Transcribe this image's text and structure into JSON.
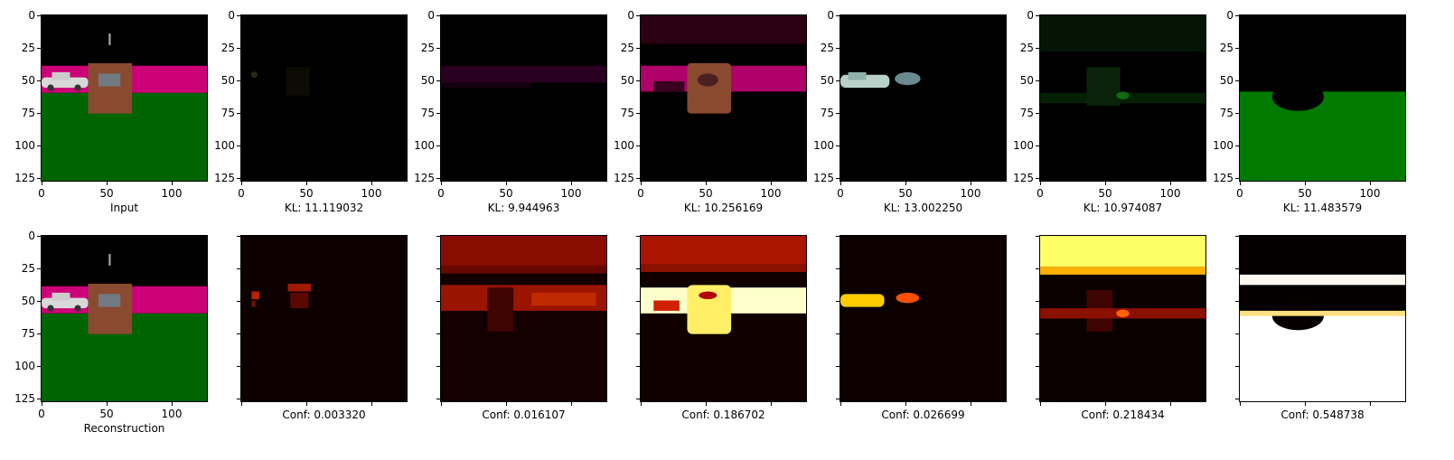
{
  "yticks": [
    "0",
    "25",
    "50",
    "75",
    "100",
    "125"
  ],
  "xticks": [
    "0",
    "50",
    "100"
  ],
  "top_row": [
    {
      "caption": "Input"
    },
    {
      "caption": "KL: 11.119032"
    },
    {
      "caption": "KL: 9.944963"
    },
    {
      "caption": "KL: 10.256169"
    },
    {
      "caption": "KL: 13.002250"
    },
    {
      "caption": "KL: 10.974087"
    },
    {
      "caption": "KL: 11.483579"
    }
  ],
  "bottom_row": [
    {
      "caption": "Reconstruction"
    },
    {
      "caption": "Conf: 0.003320"
    },
    {
      "caption": "Conf: 0.016107"
    },
    {
      "caption": "Conf: 0.186702"
    },
    {
      "caption": "Conf: 0.026699"
    },
    {
      "caption": "Conf: 0.218434"
    },
    {
      "caption": "Conf: 0.548738"
    }
  ],
  "colors": {
    "sky": "#000000",
    "wall": "#cc0077",
    "ground": "#006400",
    "box": "#8a4a30",
    "car": "#d8d8d8",
    "heat_low": "#100000",
    "heat_mid": "#d02000",
    "heat_high": "#ffffee"
  }
}
